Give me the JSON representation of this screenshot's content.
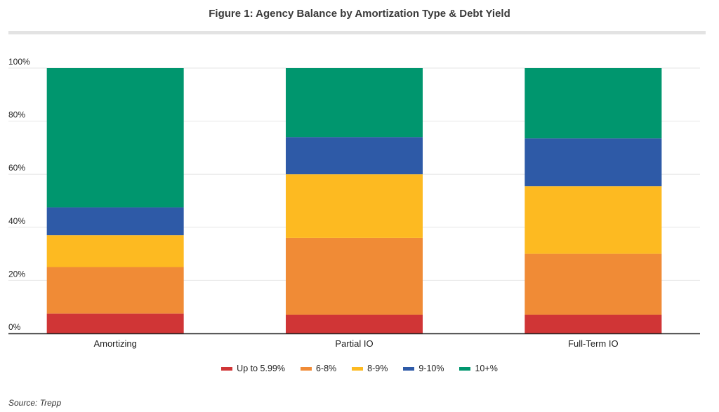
{
  "chart_data": {
    "type": "bar",
    "stacked": true,
    "title": "Figure 1: Agency Balance by Amortization Type & Debt Yield",
    "categories": [
      "Amortizing",
      "Partial IO",
      "Full-Term IO"
    ],
    "series": [
      {
        "name": "Up to 5.99%",
        "color": "#d03536",
        "values": [
          7.5,
          7,
          7
        ]
      },
      {
        "name": "6-8%",
        "color": "#f08b36",
        "values": [
          17.5,
          29,
          23
        ]
      },
      {
        "name": "8-9%",
        "color": "#fdba21",
        "values": [
          12,
          24,
          25.5
        ]
      },
      {
        "name": "9-10%",
        "color": "#2e5aa7",
        "values": [
          10.5,
          14,
          18
        ]
      },
      {
        "name": "10+%",
        "color": "#00966e",
        "values": [
          52.5,
          26,
          26.5
        ]
      }
    ],
    "ylim": [
      0,
      100
    ],
    "yticks": [
      "0%",
      "20%",
      "40%",
      "60%",
      "80%",
      "100%"
    ],
    "grid": true,
    "legend_position": "bottom"
  },
  "source": "Source: Trepp"
}
